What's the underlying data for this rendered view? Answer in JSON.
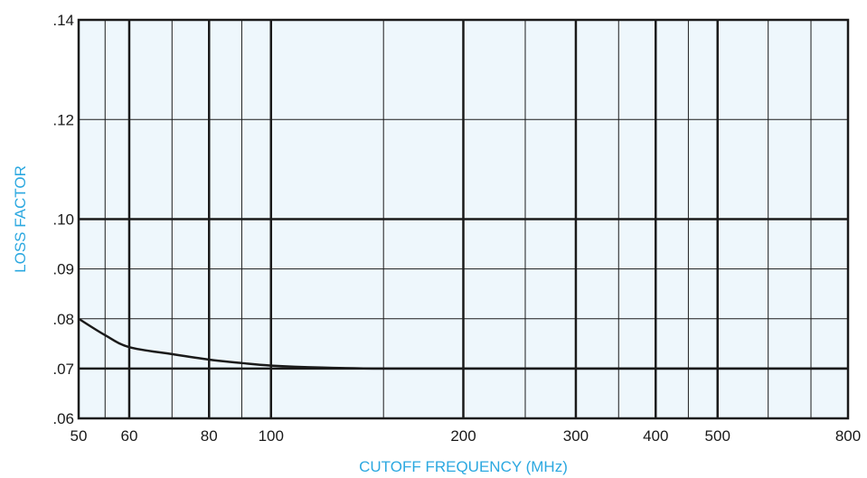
{
  "chart_data": {
    "type": "line",
    "title": "",
    "xlabel": "CUTOFF FREQUENCY (MHz)",
    "ylabel": "LOSS FACTOR",
    "x_scale": "log",
    "xlim": [
      50,
      800
    ],
    "ylim": [
      0.06,
      0.14
    ],
    "x_ticks": [
      50,
      60,
      80,
      100,
      200,
      300,
      400,
      500,
      800
    ],
    "x_tick_labels": [
      "50",
      "60",
      "80",
      "100",
      "200",
      "300",
      "400",
      "500",
      "800"
    ],
    "y_ticks": [
      0.06,
      0.07,
      0.08,
      0.09,
      0.1,
      0.12,
      0.14
    ],
    "y_tick_labels": [
      ".06",
      ".07",
      ".08",
      ".09",
      ".10",
      ".12",
      ".14"
    ],
    "grid": true,
    "series": [
      {
        "x": [
          50,
          55,
          60,
          70,
          80,
          90,
          100,
          120,
          150,
          200,
          300,
          400,
          500,
          800
        ],
        "values": [
          0.08,
          0.0767,
          0.0743,
          0.0729,
          0.0718,
          0.0711,
          0.0706,
          0.0702,
          0.07,
          0.07,
          0.07,
          0.07,
          0.07,
          0.07
        ]
      }
    ]
  },
  "colors": {
    "plot_background": "#eef7fc",
    "grid_line": "#1a1a1a",
    "curve": "#1a1a1a",
    "axis_title": "#2ba8e0"
  }
}
